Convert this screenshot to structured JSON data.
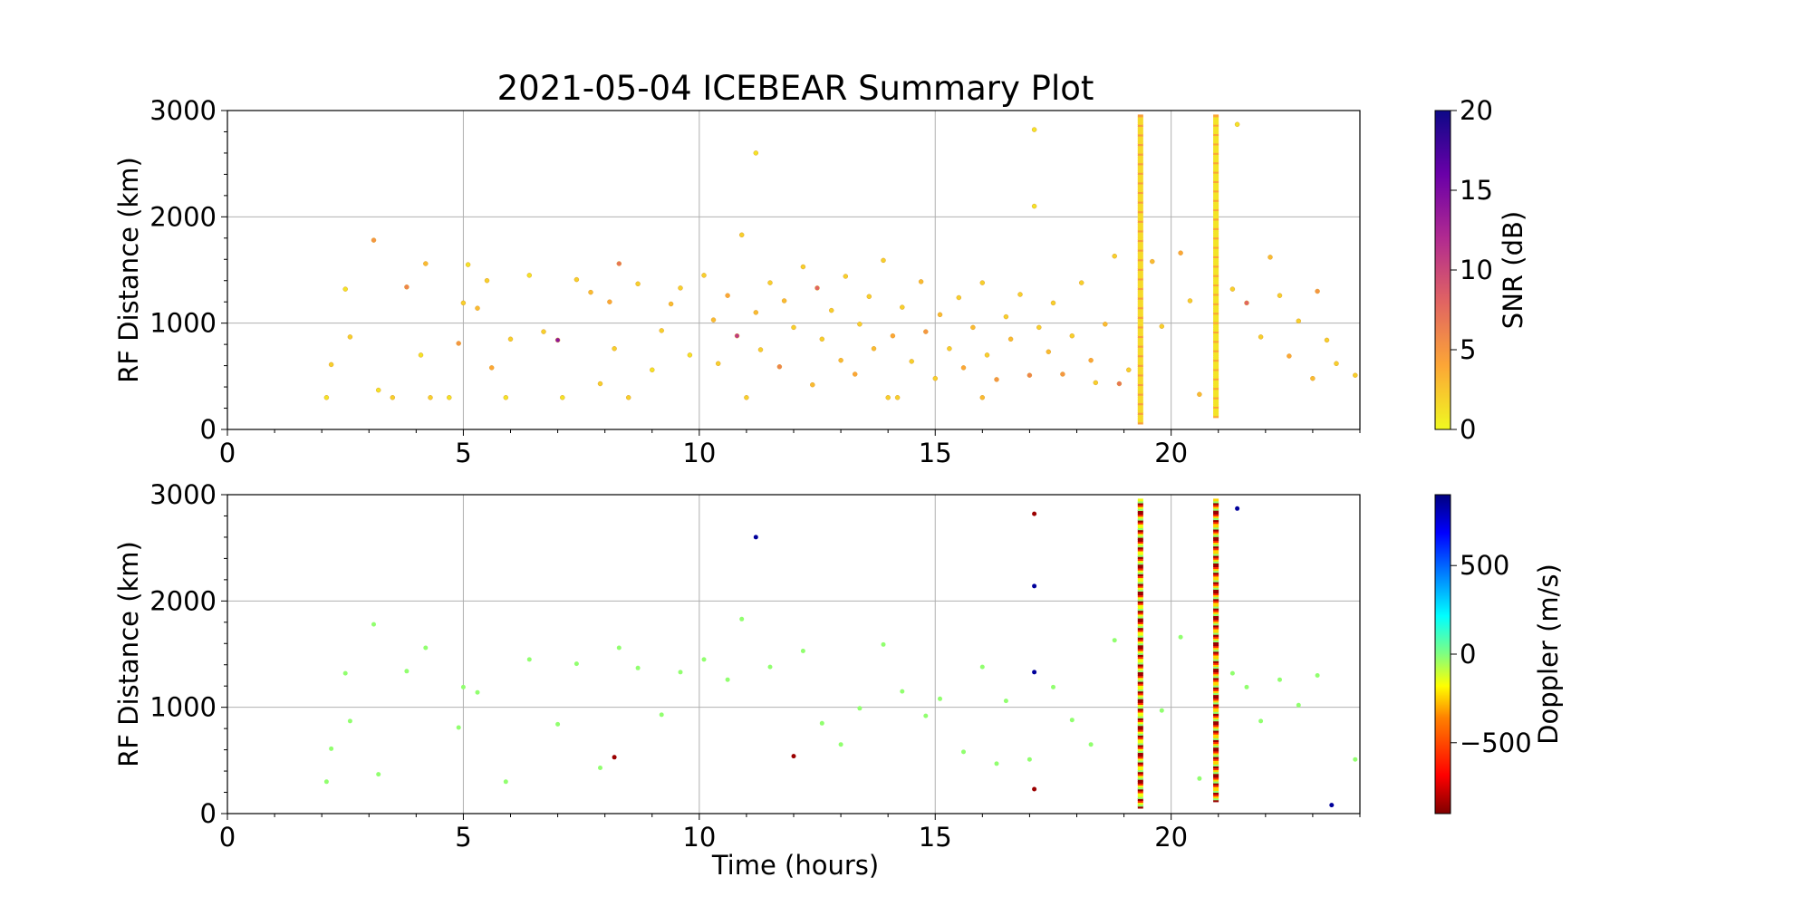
{
  "title": "2021-05-04 ICEBEAR Summary Plot",
  "chart_data": [
    {
      "type": "scatter",
      "panel": "top",
      "xlabel": "",
      "ylabel": "RF Distance (km)",
      "xlim": [
        0,
        24
      ],
      "ylim": [
        0,
        3000
      ],
      "xticks": [
        0,
        5,
        10,
        15,
        20
      ],
      "yticks": [
        0,
        1000,
        2000,
        3000
      ],
      "grid": true,
      "color_by": "SNR",
      "colorbar": {
        "label": "SNR (dB)",
        "range": [
          0,
          20
        ],
        "ticks": [
          0,
          5,
          10,
          15,
          20
        ],
        "colormap": "plasma_r",
        "colors": [
          "#f0f921",
          "#fca636",
          "#e16462",
          "#b12a90",
          "#6a00a8",
          "#0d0887"
        ]
      },
      "series": [
        {
          "points": [
            [
              2.1,
              300,
              1
            ],
            [
              2.2,
              610,
              2
            ],
            [
              2.5,
              1320,
              1
            ],
            [
              2.6,
              870,
              2
            ],
            [
              3.1,
              1780,
              5
            ],
            [
              3.2,
              370,
              1
            ],
            [
              3.5,
              300,
              2
            ],
            [
              3.8,
              1340,
              6
            ],
            [
              4.1,
              700,
              1
            ],
            [
              4.2,
              1560,
              3
            ],
            [
              4.3,
              300,
              2
            ],
            [
              4.7,
              300,
              1
            ],
            [
              4.9,
              810,
              5
            ],
            [
              5.0,
              1190,
              2
            ],
            [
              5.1,
              1550,
              1
            ],
            [
              5.3,
              1140,
              3
            ],
            [
              5.5,
              1400,
              2
            ],
            [
              5.6,
              580,
              4
            ],
            [
              5.9,
              300,
              1
            ],
            [
              6.0,
              850,
              2
            ],
            [
              6.4,
              1450,
              1
            ],
            [
              6.7,
              920,
              2
            ],
            [
              7.0,
              840,
              14
            ],
            [
              7.1,
              300,
              1
            ],
            [
              7.4,
              1410,
              2
            ],
            [
              7.7,
              1290,
              3
            ],
            [
              7.9,
              430,
              2
            ],
            [
              8.1,
              1200,
              4
            ],
            [
              8.2,
              760,
              2
            ],
            [
              8.3,
              1560,
              7
            ],
            [
              8.5,
              300,
              2
            ],
            [
              8.7,
              1370,
              2
            ],
            [
              9.0,
              560,
              1
            ],
            [
              9.2,
              930,
              2
            ],
            [
              9.4,
              1180,
              3
            ],
            [
              9.6,
              1330,
              2
            ],
            [
              9.8,
              700,
              1
            ],
            [
              10.1,
              1450,
              2
            ],
            [
              10.3,
              1030,
              3
            ],
            [
              10.4,
              620,
              2
            ],
            [
              10.6,
              1260,
              4
            ],
            [
              10.8,
              880,
              11
            ],
            [
              10.9,
              1830,
              2
            ],
            [
              11.0,
              300,
              2
            ],
            [
              11.2,
              1100,
              3
            ],
            [
              11.3,
              750,
              2
            ],
            [
              11.5,
              1380,
              2
            ],
            [
              11.7,
              590,
              6
            ],
            [
              11.8,
              1210,
              3
            ],
            [
              12.0,
              960,
              2
            ],
            [
              12.2,
              1530,
              2
            ],
            [
              12.4,
              420,
              3
            ],
            [
              12.5,
              1330,
              8
            ],
            [
              12.6,
              850,
              2
            ],
            [
              12.8,
              1120,
              2
            ],
            [
              13.0,
              650,
              3
            ],
            [
              13.1,
              1440,
              2
            ],
            [
              13.3,
              520,
              4
            ],
            [
              13.4,
              990,
              2
            ],
            [
              13.6,
              1250,
              2
            ],
            [
              13.7,
              760,
              3
            ],
            [
              13.9,
              1590,
              2
            ],
            [
              14.0,
              300,
              2
            ],
            [
              14.1,
              880,
              4
            ],
            [
              14.3,
              1150,
              2
            ],
            [
              14.5,
              640,
              2
            ],
            [
              14.7,
              1390,
              3
            ],
            [
              14.8,
              920,
              5
            ],
            [
              15.0,
              480,
              2
            ],
            [
              15.1,
              1080,
              3
            ],
            [
              15.3,
              760,
              2
            ],
            [
              15.5,
              1240,
              2
            ],
            [
              15.6,
              580,
              4
            ],
            [
              15.8,
              960,
              3
            ],
            [
              16.0,
              1380,
              2
            ],
            [
              16.1,
              700,
              2
            ],
            [
              16.3,
              470,
              5
            ],
            [
              16.5,
              1060,
              2
            ],
            [
              16.6,
              850,
              3
            ],
            [
              16.8,
              1270,
              2
            ],
            [
              17.0,
              510,
              6
            ],
            [
              17.2,
              960,
              2
            ],
            [
              17.4,
              730,
              3
            ],
            [
              17.5,
              1190,
              2
            ],
            [
              17.7,
              520,
              5
            ],
            [
              17.9,
              880,
              2
            ],
            [
              18.1,
              1380,
              2
            ],
            [
              18.3,
              650,
              4
            ],
            [
              18.4,
              440,
              2
            ],
            [
              18.6,
              990,
              3
            ],
            [
              18.8,
              1630,
              2
            ],
            [
              18.9,
              430,
              7
            ],
            [
              19.1,
              560,
              2
            ],
            [
              19.6,
              1580,
              3
            ],
            [
              19.8,
              970,
              2
            ],
            [
              20.2,
              1660,
              4
            ],
            [
              20.4,
              1210,
              2
            ],
            [
              20.6,
              330,
              3
            ],
            [
              21.3,
              1320,
              2
            ],
            [
              21.6,
              1190,
              8
            ],
            [
              21.9,
              870,
              2
            ],
            [
              22.1,
              1620,
              3
            ],
            [
              22.3,
              1260,
              2
            ],
            [
              22.5,
              690,
              4
            ],
            [
              22.7,
              1020,
              2
            ],
            [
              23.0,
              480,
              3
            ],
            [
              23.1,
              1300,
              5
            ],
            [
              23.3,
              840,
              2
            ],
            [
              23.5,
              620,
              2
            ],
            [
              23.9,
              510,
              2
            ],
            [
              17.1,
              2820,
              1
            ],
            [
              17.1,
              2100,
              1
            ],
            [
              11.2,
              2600,
              1
            ],
            [
              21.4,
              2870,
              1
            ],
            [
              16.0,
              300,
              3
            ],
            [
              14.2,
              300,
              2
            ]
          ]
        },
        {
          "name_hidden": "",
          "vertical_bands": [
            {
              "x": 19.35,
              "y_range": [
                60,
                2950
              ],
              "snr": 1.5
            },
            {
              "x": 20.95,
              "y_range": [
                120,
                2950
              ],
              "snr": 1.0
            }
          ]
        }
      ]
    },
    {
      "type": "scatter",
      "panel": "bottom",
      "xlabel": "Time (hours)",
      "ylabel": "RF Distance (km)",
      "xlim": [
        0,
        24
      ],
      "ylim": [
        0,
        3000
      ],
      "xticks": [
        0,
        5,
        10,
        15,
        20
      ],
      "yticks": [
        0,
        1000,
        2000,
        3000
      ],
      "grid": true,
      "color_by": "Doppler",
      "colorbar": {
        "label": "Doppler (m/s)",
        "range": [
          -900,
          900
        ],
        "ticks": [
          -500,
          0,
          500
        ],
        "tick_labels": [
          "−500",
          "0",
          "500"
        ],
        "colormap": "jet_r",
        "colors": [
          "#7f0000",
          "#ff0000",
          "#ff8000",
          "#ffff00",
          "#80ff80",
          "#00ffff",
          "#0080ff",
          "#0000ff",
          "#00007f"
        ]
      },
      "series": [
        {
          "points": [
            [
              2.1,
              300,
              -30
            ],
            [
              2.2,
              610,
              -30
            ],
            [
              2.5,
              1320,
              -30
            ],
            [
              2.6,
              870,
              -30
            ],
            [
              3.1,
              1780,
              -30
            ],
            [
              3.2,
              370,
              -30
            ],
            [
              3.8,
              1340,
              -30
            ],
            [
              4.2,
              1560,
              -30
            ],
            [
              4.9,
              810,
              -30
            ],
            [
              5.0,
              1190,
              -30
            ],
            [
              5.3,
              1140,
              -30
            ],
            [
              5.9,
              300,
              -30
            ],
            [
              6.4,
              1450,
              -30
            ],
            [
              7.0,
              840,
              -30
            ],
            [
              7.4,
              1410,
              -30
            ],
            [
              7.9,
              430,
              -30
            ],
            [
              8.2,
              530,
              -850
            ],
            [
              8.3,
              1560,
              -30
            ],
            [
              8.7,
              1370,
              -30
            ],
            [
              9.2,
              930,
              -30
            ],
            [
              9.6,
              1330,
              -30
            ],
            [
              10.1,
              1450,
              -30
            ],
            [
              10.6,
              1260,
              -30
            ],
            [
              10.9,
              1830,
              -30
            ],
            [
              11.2,
              2600,
              850
            ],
            [
              11.5,
              1380,
              -30
            ],
            [
              12.0,
              540,
              -850
            ],
            [
              12.2,
              1530,
              -30
            ],
            [
              12.6,
              850,
              -30
            ],
            [
              13.0,
              650,
              -30
            ],
            [
              13.4,
              990,
              -30
            ],
            [
              13.9,
              1590,
              -30
            ],
            [
              14.3,
              1150,
              -30
            ],
            [
              14.8,
              920,
              -30
            ],
            [
              15.1,
              1080,
              -30
            ],
            [
              15.6,
              580,
              -30
            ],
            [
              16.0,
              1380,
              -30
            ],
            [
              16.5,
              1060,
              -30
            ],
            [
              17.0,
              510,
              -30
            ],
            [
              17.1,
              2820,
              -850
            ],
            [
              17.1,
              2140,
              850
            ],
            [
              17.1,
              1330,
              850
            ],
            [
              17.1,
              230,
              -850
            ],
            [
              17.5,
              1190,
              -30
            ],
            [
              17.9,
              880,
              -30
            ],
            [
              18.3,
              650,
              -30
            ],
            [
              18.8,
              1630,
              -30
            ],
            [
              19.8,
              970,
              -30
            ],
            [
              20.2,
              1660,
              -30
            ],
            [
              20.6,
              330,
              -30
            ],
            [
              21.3,
              1320,
              -30
            ],
            [
              21.6,
              1190,
              -30
            ],
            [
              21.9,
              870,
              -30
            ],
            [
              22.3,
              1260,
              -30
            ],
            [
              22.7,
              1020,
              -30
            ],
            [
              23.1,
              1300,
              -30
            ],
            [
              23.4,
              80,
              850
            ],
            [
              21.4,
              2870,
              850
            ],
            [
              23.9,
              510,
              -30
            ],
            [
              16.3,
              470,
              -30
            ]
          ]
        },
        {
          "vertical_bands": [
            {
              "x": 19.35,
              "y_range": [
                60,
                2950
              ],
              "doppler_mix": [
                -850,
                -600,
                -200,
                -30
              ]
            },
            {
              "x": 20.95,
              "y_range": [
                120,
                2950
              ],
              "doppler_mix": [
                -850,
                -600,
                -300,
                -30
              ]
            }
          ]
        }
      ]
    }
  ]
}
